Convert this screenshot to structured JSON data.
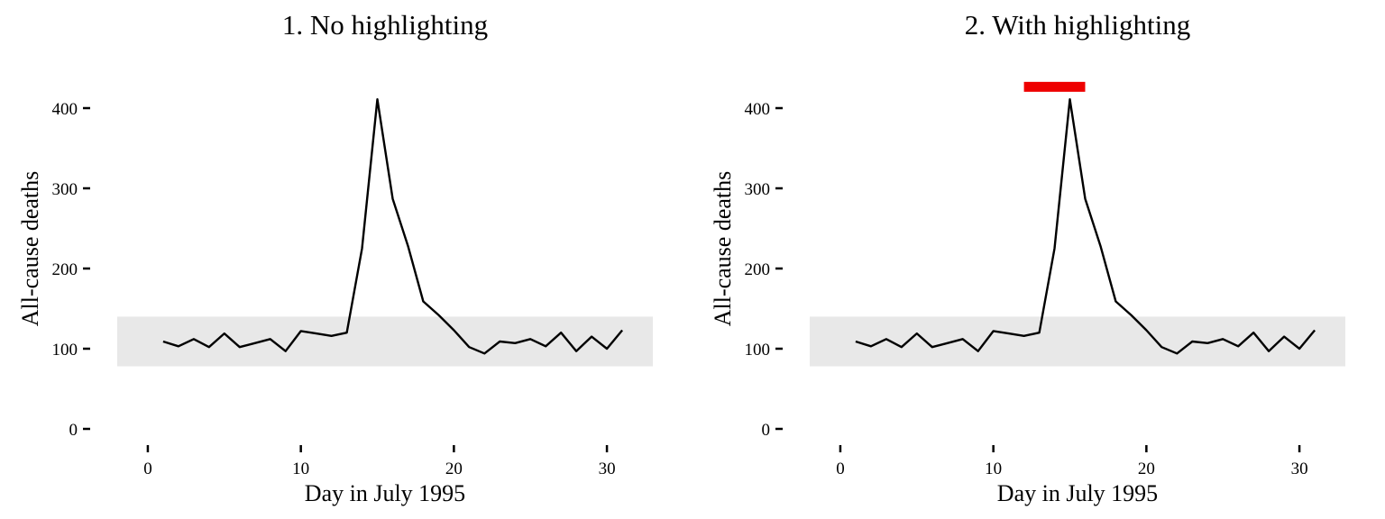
{
  "chart_data": [
    {
      "type": "line",
      "title": "1. No highlighting",
      "xlabel": "Day in July 1995",
      "ylabel": "All-cause deaths",
      "xlim": [
        -2,
        33
      ],
      "ylim": [
        0,
        425
      ],
      "x_ticks": [
        0,
        10,
        20,
        30
      ],
      "y_ticks": [
        0,
        100,
        200,
        300,
        400
      ],
      "grid": false,
      "reference_band": {
        "y_min": 78,
        "y_max": 140,
        "color": "#e8e8e8"
      },
      "highlight_bar": null,
      "series": [
        {
          "color": "#000000",
          "x": [
            1,
            2,
            3,
            4,
            5,
            6,
            7,
            8,
            9,
            10,
            11,
            12,
            13,
            14,
            15,
            16,
            17,
            18,
            19,
            20,
            21,
            22,
            23,
            24,
            25,
            26,
            27,
            28,
            29,
            30,
            31
          ],
          "y": [
            109,
            103,
            112,
            102,
            119,
            102,
            107,
            112,
            97,
            122,
            119,
            116,
            120,
            225,
            411,
            287,
            228,
            159,
            142,
            123,
            102,
            94,
            109,
            107,
            112,
            103,
            120,
            97,
            115,
            100,
            123
          ]
        }
      ]
    },
    {
      "type": "line",
      "title": "2. With highlighting",
      "xlabel": "Day in July 1995",
      "ylabel": "All-cause deaths",
      "xlim": [
        -2,
        33
      ],
      "ylim": [
        0,
        425
      ],
      "x_ticks": [
        0,
        10,
        20,
        30
      ],
      "y_ticks": [
        0,
        100,
        200,
        300,
        400
      ],
      "grid": false,
      "reference_band": {
        "y_min": 78,
        "y_max": 140,
        "color": "#e8e8e8"
      },
      "highlight_bar": {
        "x_start": 12,
        "x_end": 16,
        "y": 426,
        "color": "#ee0000"
      },
      "series": [
        {
          "color": "#000000",
          "x": [
            1,
            2,
            3,
            4,
            5,
            6,
            7,
            8,
            9,
            10,
            11,
            12,
            13,
            14,
            15,
            16,
            17,
            18,
            19,
            20,
            21,
            22,
            23,
            24,
            25,
            26,
            27,
            28,
            29,
            30,
            31
          ],
          "y": [
            109,
            103,
            112,
            102,
            119,
            102,
            107,
            112,
            97,
            122,
            119,
            116,
            120,
            225,
            411,
            287,
            228,
            159,
            142,
            123,
            102,
            94,
            109,
            107,
            112,
            103,
            120,
            97,
            115,
            100,
            123
          ]
        }
      ]
    }
  ]
}
